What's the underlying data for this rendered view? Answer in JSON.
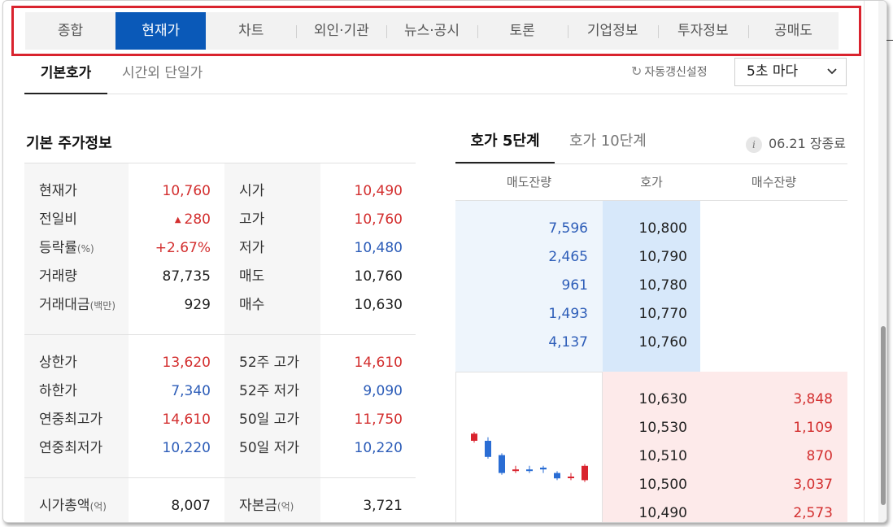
{
  "nav": {
    "items": [
      "종합",
      "현재가",
      "차트",
      "외인·기관",
      "뉴스·공시",
      "토론",
      "기업정보",
      "투자정보",
      "공매도"
    ],
    "active": "현재가"
  },
  "subtabs": {
    "basic": "기본호가",
    "after_hours": "시간외 단일가",
    "refresh_label": "자동갱신설정",
    "refresh_interval": "5초 마다"
  },
  "info": {
    "title": "기본 주가정보",
    "group1": [
      {
        "label": "현재가",
        "value": "10,760",
        "label2": "시가",
        "value2": "10,490"
      },
      {
        "label": "전일비",
        "value": "280",
        "label2": "고가",
        "value2": "10,760"
      },
      {
        "label": "등락률",
        "label_unit": "(%)",
        "value": "+2.67%",
        "label2": "저가",
        "value2": "10,480"
      },
      {
        "label": "거래량",
        "value": "87,735",
        "label2": "매도",
        "value2": "10,760"
      },
      {
        "label": "거래대금",
        "label_unit": "(백만)",
        "value": "929",
        "label2": "매수",
        "value2": "10,630"
      }
    ],
    "group2": [
      {
        "label": "상한가",
        "value": "13,620",
        "label2": "52주 고가",
        "value2": "14,610"
      },
      {
        "label": "하한가",
        "value": "7,340",
        "label2": "52주 저가",
        "value2": "9,090"
      },
      {
        "label": "연중최고가",
        "value": "14,610",
        "label2": "50일 고가",
        "value2": "11,750"
      },
      {
        "label": "연중최저가",
        "value": "10,220",
        "label2": "50일 저가",
        "value2": "10,220"
      }
    ],
    "group3": [
      {
        "label": "시가총액",
        "label_unit": "(억)",
        "value": "8,007",
        "label2": "자본금",
        "label2_unit": "(억)",
        "value2": "3,721"
      }
    ]
  },
  "orderbook": {
    "tab5": "호가 5단계",
    "tab10": "호가 10단계",
    "time": "06.21 장종료",
    "headers": {
      "sell": "매도잔량",
      "price": "호가",
      "buy": "매수잔량"
    },
    "asks": [
      {
        "qty": "7,596",
        "price": "10,800"
      },
      {
        "qty": "2,465",
        "price": "10,790"
      },
      {
        "qty": "961",
        "price": "10,780"
      },
      {
        "qty": "1,493",
        "price": "10,770"
      },
      {
        "qty": "4,137",
        "price": "10,760"
      }
    ],
    "bids": [
      {
        "price": "10,630",
        "qty": "3,848"
      },
      {
        "price": "10,530",
        "qty": "1,109"
      },
      {
        "price": "10,510",
        "qty": "870"
      },
      {
        "price": "10,500",
        "qty": "3,037"
      },
      {
        "price": "10,490",
        "qty": "2,573"
      }
    ]
  },
  "mini_chart": {
    "candles": [
      {
        "o": 10640,
        "c": 10600,
        "h": 10650,
        "l": 10590,
        "up": true
      },
      {
        "o": 10600,
        "c": 10510,
        "h": 10620,
        "l": 10500,
        "up": false
      },
      {
        "o": 10520,
        "c": 10420,
        "h": 10530,
        "l": 10410,
        "up": false
      },
      {
        "o": 10440,
        "c": 10440,
        "h": 10460,
        "l": 10420,
        "up": true
      },
      {
        "o": 10440,
        "c": 10440,
        "h": 10460,
        "l": 10420,
        "up": false
      },
      {
        "o": 10450,
        "c": 10440,
        "h": 10460,
        "l": 10420,
        "up": false
      },
      {
        "o": 10420,
        "c": 10390,
        "h": 10430,
        "l": 10380,
        "up": false
      },
      {
        "o": 10400,
        "c": 10400,
        "h": 10420,
        "l": 10380,
        "up": true
      },
      {
        "o": 10380,
        "c": 10460,
        "h": 10470,
        "l": 10370,
        "up": true
      }
    ],
    "ymin": 10300,
    "ymax": 10800,
    "up_color": "#d9232e",
    "down_color": "#2a6dd4"
  },
  "colors": {
    "accent": "#0a59b8",
    "highlight_border": "#d9232e",
    "red": "#d32f2f",
    "blue": "#2d5db8"
  }
}
